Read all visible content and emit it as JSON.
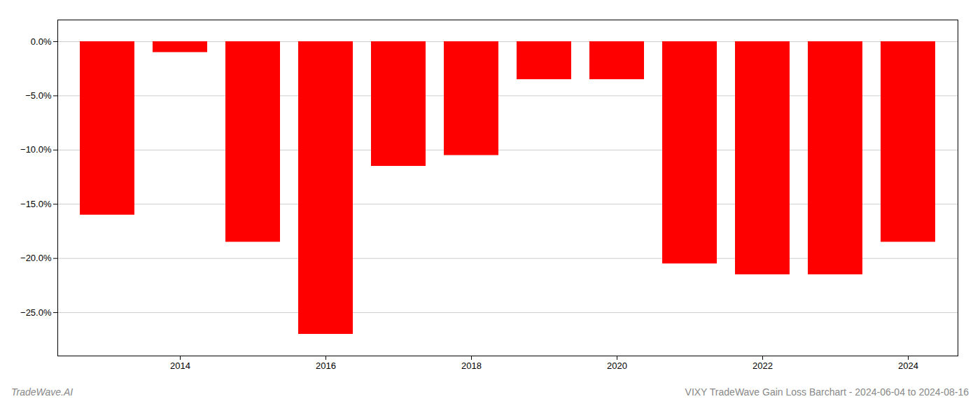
{
  "chart_data": {
    "type": "bar",
    "title": "VIXY TradeWave Gain Loss Barchart - 2024-06-04 to 2024-08-16",
    "annotations": [
      "TradeWave.AI"
    ],
    "categories": [
      null,
      "2014",
      null,
      "2016",
      null,
      "2018",
      null,
      "2020",
      null,
      "2022",
      null,
      "2024"
    ],
    "values": [
      -16.0,
      -1.0,
      -18.5,
      -27.0,
      -11.5,
      -10.5,
      -3.5,
      -3.5,
      -20.5,
      -21.5,
      -21.5,
      -18.5
    ],
    "color": "#ff0000",
    "ylim": [
      -29,
      2
    ],
    "yticks": [
      {
        "value": 0.0,
        "label": "0.0%"
      },
      {
        "value": -5.0,
        "label": "−5.0%"
      },
      {
        "value": -10.0,
        "label": "−10.0%"
      },
      {
        "value": -15.0,
        "label": "−15.0%"
      },
      {
        "value": -20.0,
        "label": "−20.0%"
      },
      {
        "value": -25.0,
        "label": "−25.0%"
      }
    ],
    "grid": true
  }
}
